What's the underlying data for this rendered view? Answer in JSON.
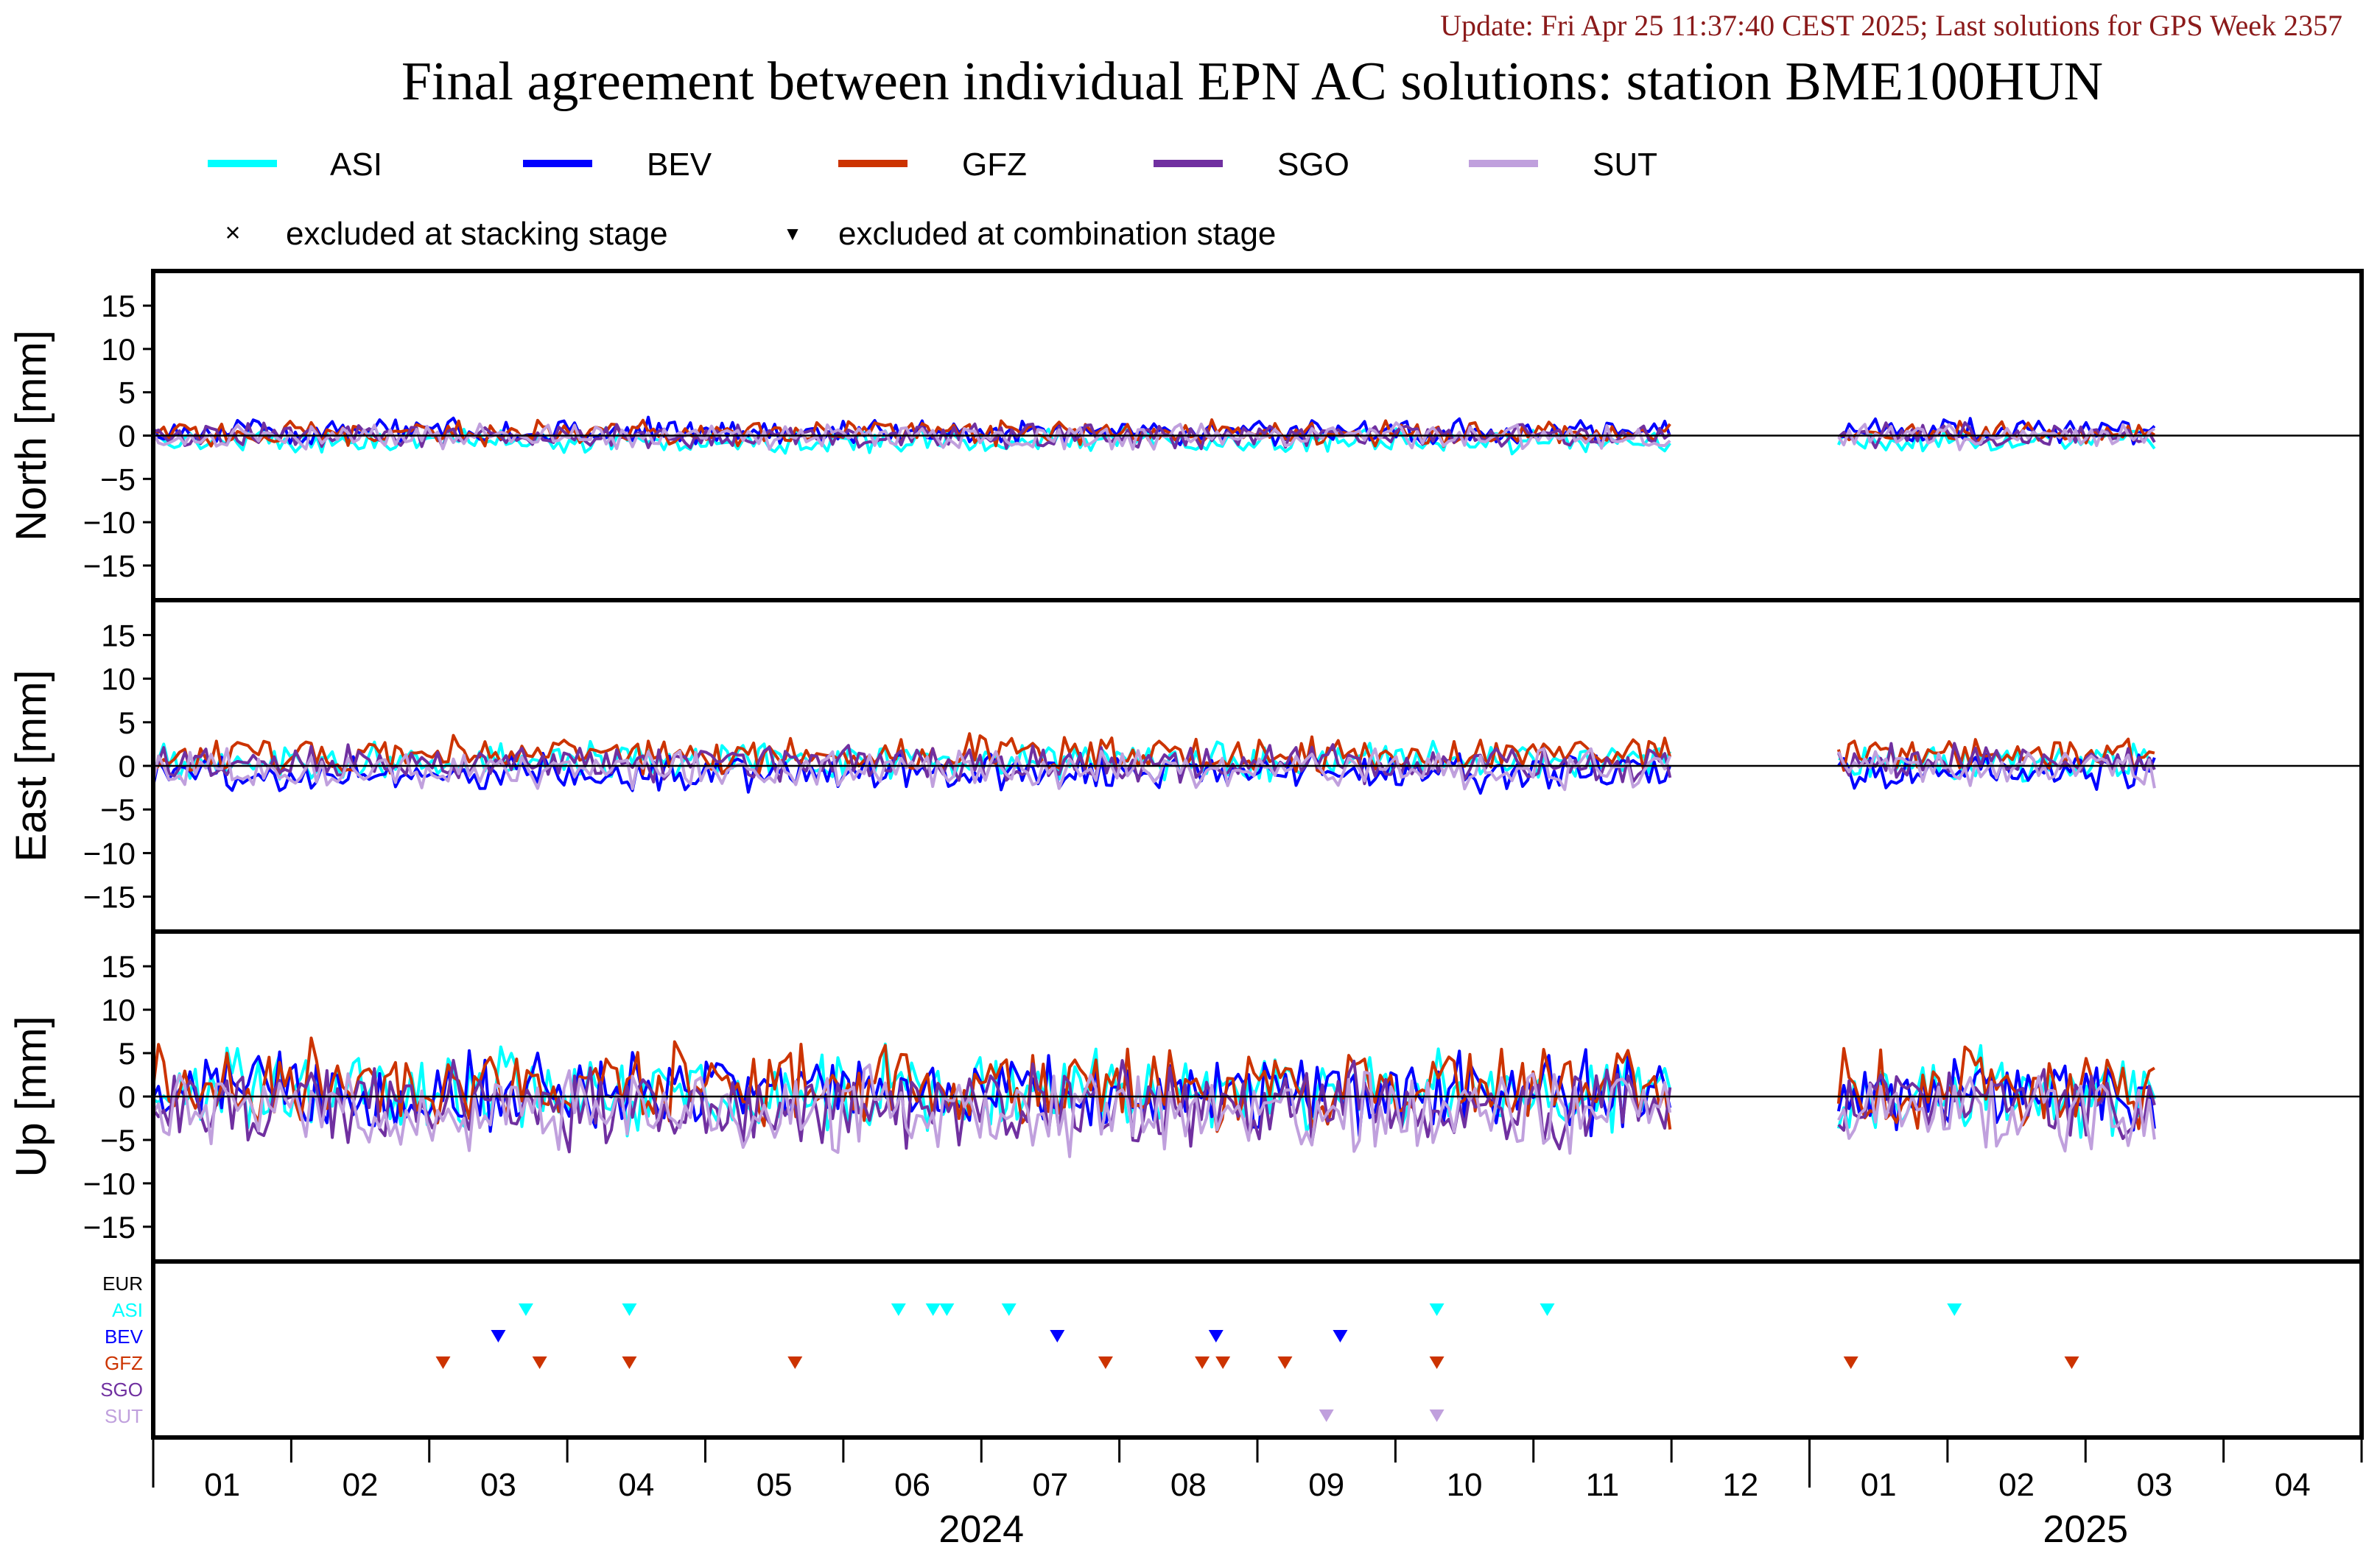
{
  "header": {
    "update_line": "Update: Fri Apr 25 11:37:40 CEST 2025; Last solutions for GPS Week 2357",
    "title": "Final agreement between individual EPN AC solutions: station BME100HUN"
  },
  "legend": {
    "series": [
      {
        "name": "ASI",
        "color": "#00FFFF"
      },
      {
        "name": "BEV",
        "color": "#0000FF"
      },
      {
        "name": "GFZ",
        "color": "#CC3300"
      },
      {
        "name": "SGO",
        "color": "#7030A0"
      },
      {
        "name": "SUT",
        "color": "#C0A0DD"
      }
    ],
    "excluded_stacking": "excluded at stacking stage",
    "excluded_combination": "excluded at combination stage",
    "marker_cross": "×",
    "marker_triangle": "▼"
  },
  "chart_data": {
    "type": "line",
    "panels": [
      {
        "name": "north",
        "ylabel": "North [mm]",
        "ylim": [
          -19,
          19
        ],
        "amplitude": 1.2,
        "offsets": [
          -0.6,
          0.5,
          0.3,
          0.0,
          -0.1
        ]
      },
      {
        "name": "east",
        "ylabel": "East [mm]",
        "ylim": [
          -19,
          19
        ],
        "amplitude": 1.8,
        "offsets": [
          0.5,
          -0.8,
          1.2,
          0.2,
          -0.4
        ]
      },
      {
        "name": "up",
        "ylabel": "Up [mm]",
        "ylim": [
          -19,
          19
        ],
        "amplitude": 4.0,
        "offsets": [
          0.5,
          0.3,
          1.5,
          -1.0,
          -1.8
        ]
      }
    ],
    "yticks": [
      15,
      10,
      5,
      0,
      -5,
      -10,
      -15
    ],
    "xlim_months": [
      0,
      16
    ],
    "x_ticks": [
      "01",
      "02",
      "03",
      "04",
      "05",
      "06",
      "07",
      "08",
      "09",
      "10",
      "11",
      "12",
      "01",
      "02",
      "03",
      "04"
    ],
    "years": [
      {
        "label": "2024",
        "center_month": 6
      },
      {
        "label": "2025",
        "center_month": 14
      }
    ],
    "data_gaps": [
      [
        11.0,
        12.2
      ]
    ],
    "data_end_month": 14.5,
    "series": [
      {
        "name": "ASI",
        "color": "#00FFFF"
      },
      {
        "name": "BEV",
        "color": "#0000FF"
      },
      {
        "name": "GFZ",
        "color": "#CC3300"
      },
      {
        "name": "SGO",
        "color": "#7030A0"
      },
      {
        "name": "SUT",
        "color": "#C0A0DD"
      }
    ],
    "exclusion_rows": [
      {
        "label": "EUR",
        "color": "#000000",
        "months": []
      },
      {
        "label": "ASI",
        "color": "#00FFFF",
        "months": [
          2.7,
          3.45,
          5.4,
          5.65,
          5.75,
          6.2,
          9.3,
          10.1,
          13.05
        ]
      },
      {
        "label": "BEV",
        "color": "#0000FF",
        "months": [
          2.5,
          6.55,
          7.7,
          8.6
        ]
      },
      {
        "label": "GFZ",
        "color": "#CC3300",
        "months": [
          2.1,
          2.8,
          3.45,
          4.65,
          6.9,
          7.6,
          7.75,
          8.2,
          9.3,
          12.3,
          13.9
        ]
      },
      {
        "label": "SGO",
        "color": "#7030A0",
        "months": []
      },
      {
        "label": "SUT",
        "color": "#C0A0DD",
        "months": [
          8.5,
          9.3
        ]
      }
    ]
  }
}
